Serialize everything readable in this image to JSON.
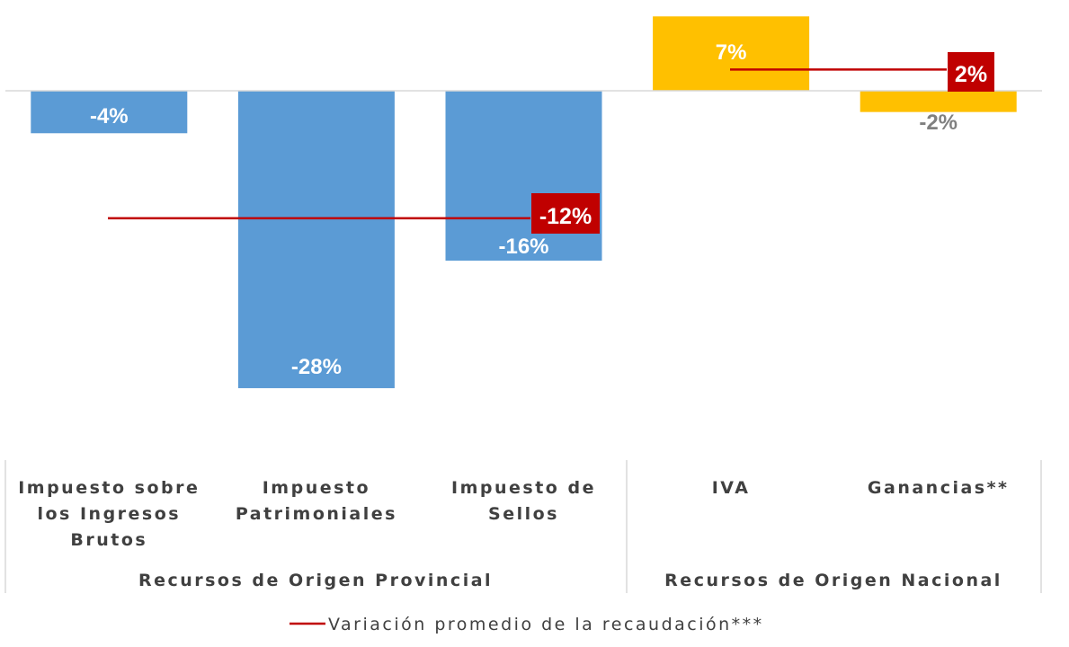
{
  "chart_data": {
    "type": "bar",
    "categories": [
      [
        "Impuesto sobre",
        "los Ingresos",
        "Brutos"
      ],
      [
        "Impuesto",
        "Patrimoniales"
      ],
      [
        "Impuesto de",
        "Sellos"
      ],
      [
        "IVA"
      ],
      [
        "Ganancias**"
      ]
    ],
    "values": [
      -4,
      -28,
      -16,
      7,
      -2
    ],
    "value_labels": [
      "-4%",
      "-28%",
      "-16%",
      "7%",
      "-2%"
    ],
    "bar_colors": [
      "#5b9bd5",
      "#5b9bd5",
      "#5b9bd5",
      "#ffc000",
      "#ffc000"
    ],
    "groups": [
      {
        "label": "Recursos de Origen Provincial",
        "categories": [
          0,
          1,
          2
        ],
        "average": -12,
        "average_label": "-12%"
      },
      {
        "label": "Recursos de Origen Nacional",
        "categories": [
          3,
          4
        ],
        "average": 2,
        "average_label": "2%"
      }
    ],
    "legend": {
      "label": "Variación promedio de la recaudación***",
      "position": "bottom"
    },
    "line_color": "#c00000",
    "ylim": [
      -31,
      7
    ],
    "grid": false,
    "title": "",
    "xlabel": "",
    "ylabel": ""
  }
}
